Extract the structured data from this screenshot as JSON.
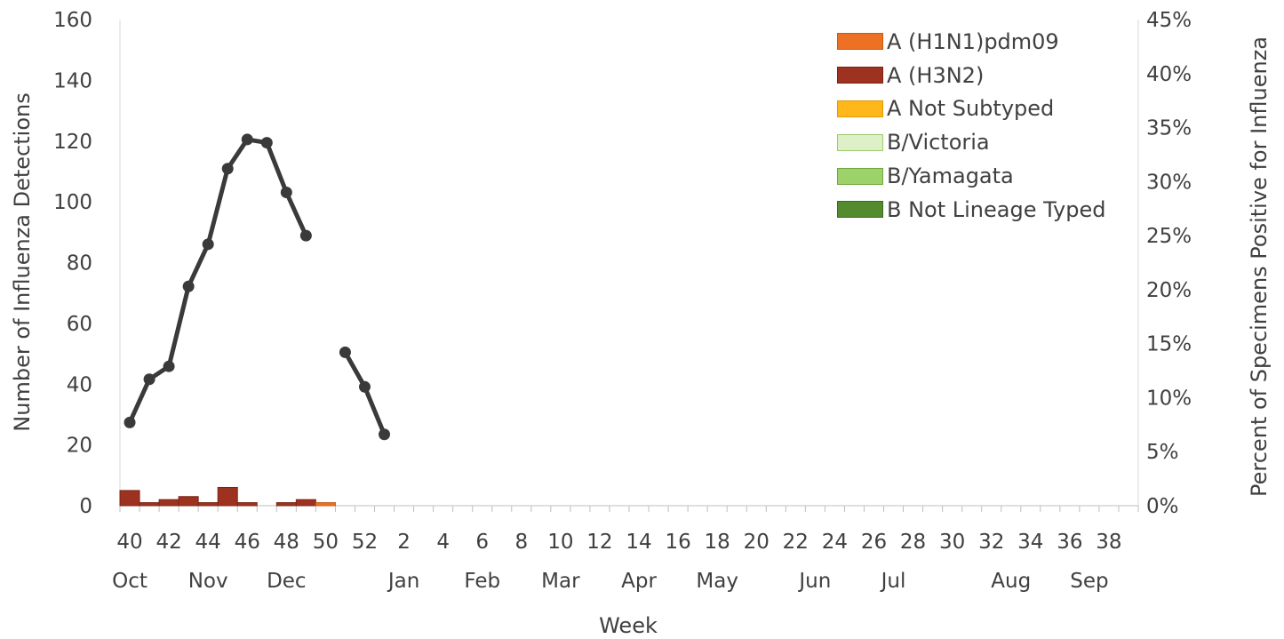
{
  "chart_data": {
    "type": "bar",
    "xlabel": "Week",
    "ylabel": "Number of Influenza Detections",
    "y2label": "Percent of Specimens Positive for Influenza",
    "ylim": [
      0,
      160
    ],
    "y2lim": [
      0,
      0.45
    ],
    "yticks": [
      "0",
      "20",
      "40",
      "60",
      "80",
      "100",
      "120",
      "140",
      "160"
    ],
    "y2ticks": [
      "0%",
      "5%",
      "10%",
      "15%",
      "20%",
      "25%",
      "30%",
      "35%",
      "40%",
      "45%"
    ],
    "weeks": [
      40,
      41,
      42,
      43,
      44,
      45,
      46,
      47,
      48,
      49,
      50,
      51,
      52,
      1,
      2,
      3,
      4,
      5,
      6,
      7,
      8,
      9,
      10,
      11,
      12,
      13,
      14,
      15,
      16,
      17,
      18,
      19,
      20,
      21,
      22,
      23,
      24,
      25,
      26,
      27,
      28,
      29,
      30,
      31,
      32,
      33,
      34,
      35,
      36,
      37,
      38,
      39
    ],
    "week_tick_labels": [
      "40",
      "42",
      "44",
      "46",
      "48",
      "50",
      "52",
      "2",
      "4",
      "6",
      "8",
      "10",
      "12",
      "14",
      "16",
      "18",
      "20",
      "22",
      "24",
      "26",
      "28",
      "30",
      "32",
      "34",
      "36",
      "38"
    ],
    "month_labels": [
      {
        "label": "Oct",
        "week": 40
      },
      {
        "label": "Nov",
        "week": 44
      },
      {
        "label": "Dec",
        "week": 48
      },
      {
        "label": "Jan",
        "week": 2
      },
      {
        "label": "Feb",
        "week": 6
      },
      {
        "label": "Mar",
        "week": 10
      },
      {
        "label": "Apr",
        "week": 14
      },
      {
        "label": "May",
        "week": 18
      },
      {
        "label": "Jun",
        "week": 23
      },
      {
        "label": "Jul",
        "week": 27
      },
      {
        "label": "Aug",
        "week": 33
      },
      {
        "label": "Sep",
        "week": 37
      }
    ],
    "series": [
      {
        "name": "A (H1N1)pdm09",
        "color": "#ED7125",
        "border": "#C55A11",
        "values": [
          0,
          0,
          0,
          0,
          0,
          0,
          0,
          0,
          0,
          0,
          1,
          0,
          0,
          0,
          0,
          0,
          0,
          0,
          0,
          0,
          0,
          0,
          0,
          0,
          0,
          0,
          0,
          0,
          0,
          0,
          0,
          0,
          0,
          0,
          0,
          0,
          0,
          0,
          0,
          0,
          0,
          0,
          0,
          0,
          0,
          0,
          0,
          0,
          0,
          0,
          0,
          0
        ]
      },
      {
        "name": "A (H3N2)",
        "color": "#9E3220",
        "border": "#7A2415",
        "values": [
          5,
          1,
          2,
          3,
          1,
          6,
          1,
          0,
          1,
          2,
          0,
          0,
          0,
          0,
          0,
          0,
          0,
          0,
          0,
          0,
          0,
          0,
          0,
          0,
          0,
          0,
          0,
          0,
          0,
          0,
          0,
          0,
          0,
          0,
          0,
          0,
          0,
          0,
          0,
          0,
          0,
          0,
          0,
          0,
          0,
          0,
          0,
          0,
          0,
          0,
          0,
          0
        ]
      },
      {
        "name": "A Not Subtyped",
        "color": "#FFB71B",
        "border": "#E09A00",
        "values": [
          0,
          0,
          0,
          0,
          0,
          0,
          0,
          0,
          0,
          0,
          0,
          0,
          0,
          0,
          0,
          0,
          0,
          0,
          0,
          0,
          0,
          0,
          0,
          0,
          0,
          0,
          0,
          0,
          0,
          0,
          0,
          0,
          0,
          0,
          0,
          0,
          0,
          0,
          0,
          0,
          0,
          0,
          0,
          0,
          0,
          0,
          0,
          0,
          0,
          0,
          0,
          0
        ]
      },
      {
        "name": "B/Victoria",
        "color": "#DDF0C8",
        "border": "#9BCB6B",
        "values": [
          0,
          0,
          0,
          0,
          0,
          0,
          0,
          0,
          0,
          0,
          0,
          0,
          0,
          0,
          0,
          0,
          0,
          0,
          0,
          0,
          0,
          0,
          0,
          0,
          0,
          0,
          0,
          0,
          0,
          0,
          0,
          0,
          0,
          0,
          0,
          0,
          0,
          0,
          0,
          0,
          0,
          0,
          0,
          0,
          0,
          0,
          0,
          0,
          0,
          0,
          0,
          0
        ]
      },
      {
        "name": "B/Yamagata",
        "color": "#9DD26A",
        "border": "#6FA83F",
        "values": [
          0,
          0,
          0,
          0,
          0,
          0,
          0,
          0,
          0,
          0,
          0,
          0,
          0,
          0,
          0,
          0,
          0,
          0,
          0,
          0,
          0,
          0,
          0,
          0,
          0,
          0,
          0,
          0,
          0,
          0,
          0,
          0,
          0,
          0,
          0,
          0,
          0,
          0,
          0,
          0,
          0,
          0,
          0,
          0,
          0,
          0,
          0,
          0,
          0,
          0,
          0,
          0
        ]
      },
      {
        "name": "B Not Lineage Typed",
        "color": "#548B2E",
        "border": "#3E6B20",
        "values": [
          0,
          0,
          0,
          0,
          0,
          0,
          0,
          0,
          0,
          0,
          0,
          0,
          0,
          0,
          0,
          0,
          0,
          0,
          0,
          0,
          0,
          0,
          0,
          0,
          0,
          0,
          0,
          0,
          0,
          0,
          0,
          0,
          0,
          0,
          0,
          0,
          0,
          0,
          0,
          0,
          0,
          0,
          0,
          0,
          0,
          0,
          0,
          0,
          0,
          0,
          0,
          0
        ]
      }
    ],
    "percent_positive": {
      "color": "#3A3A3A",
      "values": [
        0.077,
        0.117,
        0.129,
        0.203,
        0.242,
        0.312,
        0.339,
        0.336,
        0.29,
        0.25,
        null,
        0.142,
        0.11,
        0.066,
        null,
        null,
        null,
        null,
        null,
        null,
        null,
        null,
        null,
        null,
        null,
        null,
        null,
        null,
        null,
        null,
        null,
        null,
        null,
        null,
        null,
        null,
        null,
        null,
        null,
        null,
        null,
        null,
        null,
        null,
        null,
        null,
        null,
        null,
        null,
        null,
        null,
        null
      ]
    }
  }
}
